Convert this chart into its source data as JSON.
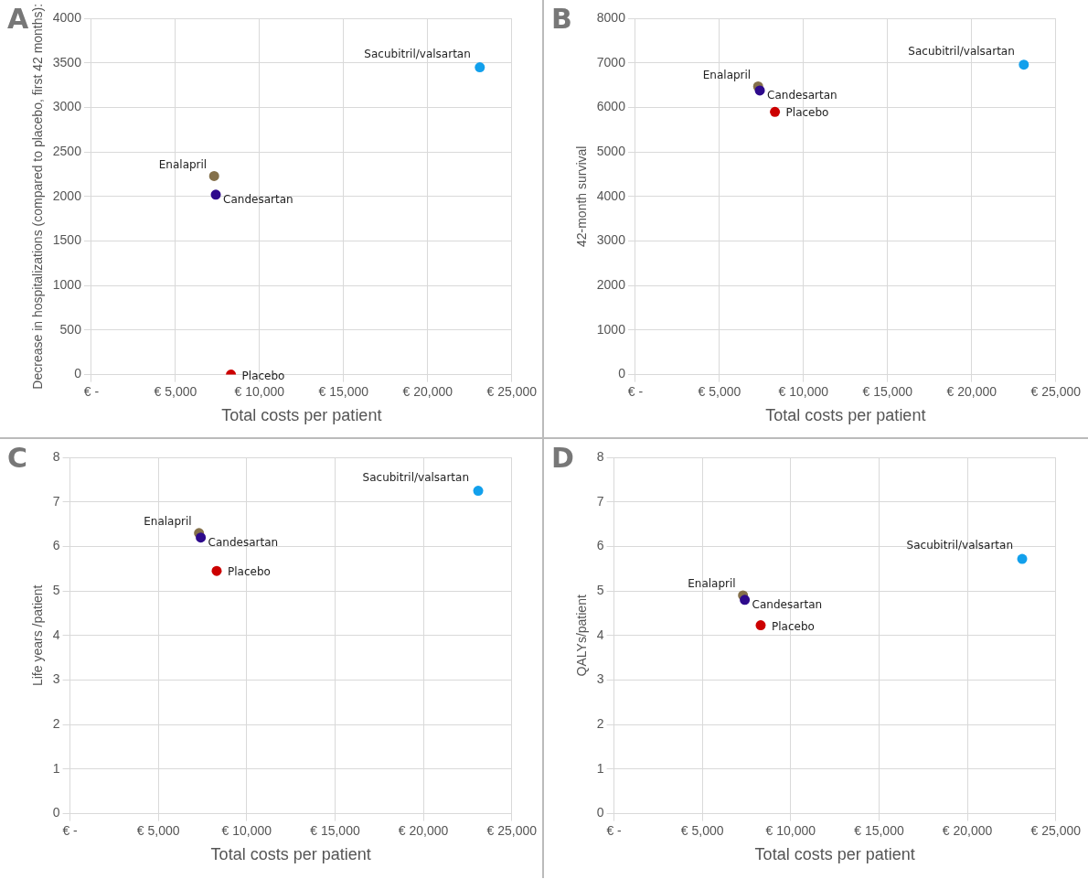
{
  "chart_data": [
    {
      "type": "scatter",
      "title": "A",
      "xlabel": "Total costs per patient",
      "ylabel": "Decrease in hospitalizations (compared to placebo, first 42 months):",
      "xlim": [
        0,
        25000
      ],
      "xticks": [
        {
          "value": 0,
          "label": "€ -"
        },
        {
          "value": 5000,
          "label": "€ 5,000"
        },
        {
          "value": 10000,
          "label": "€ 10,000"
        },
        {
          "value": 15000,
          "label": "€ 15,000"
        },
        {
          "value": 20000,
          "label": "€ 20,000"
        },
        {
          "value": 25000,
          "label": "€ 25,000"
        }
      ],
      "ylim": [
        0,
        4000
      ],
      "yticks": [
        0,
        500,
        1000,
        1500,
        2000,
        2500,
        3000,
        3500,
        4000
      ],
      "grid": true,
      "legend": false,
      "marker": "circle",
      "series": [
        {
          "name": "Enalapril",
          "color": "#84704a",
          "x": [
            7300
          ],
          "values": [
            2230
          ]
        },
        {
          "name": "Candesartan",
          "color": "#2e0a8c",
          "x": [
            7400
          ],
          "values": [
            2020
          ]
        },
        {
          "name": "Placebo",
          "color": "#cc0000",
          "x": [
            8300
          ],
          "values": [
            0
          ]
        },
        {
          "name": "Sacubitril/valsartan",
          "color": "#12a0ec",
          "x": [
            23100
          ],
          "values": [
            3450
          ]
        }
      ]
    },
    {
      "type": "scatter",
      "title": "B",
      "xlabel": "Total costs per patient",
      "ylabel": "42-month survival",
      "xlim": [
        0,
        25000
      ],
      "xticks": [
        {
          "value": 0,
          "label": "€ -"
        },
        {
          "value": 5000,
          "label": "€ 5,000"
        },
        {
          "value": 10000,
          "label": "€ 10,000"
        },
        {
          "value": 15000,
          "label": "€ 15,000"
        },
        {
          "value": 20000,
          "label": "€ 20,000"
        },
        {
          "value": 25000,
          "label": "€ 25,000"
        }
      ],
      "ylim": [
        0,
        8000
      ],
      "yticks": [
        0,
        1000,
        2000,
        3000,
        4000,
        5000,
        6000,
        7000,
        8000
      ],
      "grid": true,
      "legend": false,
      "marker": "circle",
      "series": [
        {
          "name": "Enalapril",
          "color": "#84704a",
          "x": [
            7300
          ],
          "values": [
            6470
          ]
        },
        {
          "name": "Candesartan",
          "color": "#2e0a8c",
          "x": [
            7400
          ],
          "values": [
            6380
          ]
        },
        {
          "name": "Placebo",
          "color": "#cc0000",
          "x": [
            8300
          ],
          "values": [
            5900
          ]
        },
        {
          "name": "Sacubitril/valsartan",
          "color": "#12a0ec",
          "x": [
            23100
          ],
          "values": [
            6960
          ]
        }
      ]
    },
    {
      "type": "scatter",
      "title": "C",
      "xlabel": "Total costs per patient",
      "ylabel": "Life years /patient",
      "xlim": [
        0,
        25000
      ],
      "xticks": [
        {
          "value": 0,
          "label": "€ -"
        },
        {
          "value": 5000,
          "label": "€ 5,000"
        },
        {
          "value": 10000,
          "label": "€ 10,000"
        },
        {
          "value": 15000,
          "label": "€ 15,000"
        },
        {
          "value": 20000,
          "label": "€ 20,000"
        },
        {
          "value": 25000,
          "label": "€ 25,000"
        }
      ],
      "ylim": [
        0,
        8
      ],
      "yticks": [
        0,
        1,
        2,
        3,
        4,
        5,
        6,
        7,
        8
      ],
      "grid": true,
      "legend": false,
      "marker": "circle",
      "series": [
        {
          "name": "Enalapril",
          "color": "#84704a",
          "x": [
            7300
          ],
          "values": [
            6.3
          ]
        },
        {
          "name": "Candesartan",
          "color": "#2e0a8c",
          "x": [
            7400
          ],
          "values": [
            6.2
          ]
        },
        {
          "name": "Placebo",
          "color": "#cc0000",
          "x": [
            8300
          ],
          "values": [
            5.45
          ]
        },
        {
          "name": "Sacubitril/valsartan",
          "color": "#12a0ec",
          "x": [
            23100
          ],
          "values": [
            7.25
          ]
        }
      ]
    },
    {
      "type": "scatter",
      "title": "D",
      "xlabel": "Total costs per patient",
      "ylabel": "QALYs/patient",
      "xlim": [
        0,
        25000
      ],
      "xticks": [
        {
          "value": 0,
          "label": "€ -"
        },
        {
          "value": 5000,
          "label": "€ 5,000"
        },
        {
          "value": 10000,
          "label": "€ 10,000"
        },
        {
          "value": 15000,
          "label": "€ 15,000"
        },
        {
          "value": 20000,
          "label": "€ 20,000"
        },
        {
          "value": 25000,
          "label": "€ 25,000"
        }
      ],
      "ylim": [
        0,
        8
      ],
      "yticks": [
        0,
        1,
        2,
        3,
        4,
        5,
        6,
        7,
        8
      ],
      "grid": true,
      "legend": false,
      "marker": "circle",
      "series": [
        {
          "name": "Enalapril",
          "color": "#84704a",
          "x": [
            7300
          ],
          "values": [
            4.9
          ]
        },
        {
          "name": "Candesartan",
          "color": "#2e0a8c",
          "x": [
            7400
          ],
          "values": [
            4.8
          ]
        },
        {
          "name": "Placebo",
          "color": "#cc0000",
          "x": [
            8300
          ],
          "values": [
            4.23
          ]
        },
        {
          "name": "Sacubitril/valsartan",
          "color": "#12a0ec",
          "x": [
            23100
          ],
          "values": [
            5.72
          ]
        }
      ]
    }
  ]
}
